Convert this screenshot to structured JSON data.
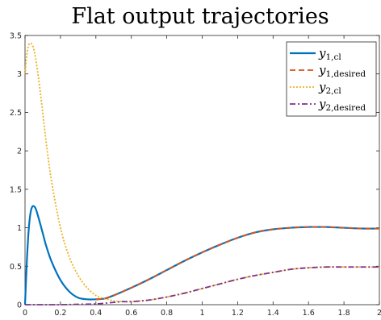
{
  "chart_data": {
    "type": "line",
    "title": "Flat output trajectories",
    "xlabel": "",
    "ylabel": "",
    "xlim": [
      0,
      2
    ],
    "ylim": [
      0,
      3.5
    ],
    "x_ticks": [
      0,
      0.2,
      0.4,
      0.6,
      0.8,
      1,
      1.2,
      1.4,
      1.6,
      1.8,
      2
    ],
    "x_tick_labels": [
      "0",
      "0.2",
      "0.4",
      "0.6",
      "0.8",
      "1",
      "1.2",
      "1.4",
      "1.6",
      "1.8",
      "2"
    ],
    "y_ticks": [
      0,
      0.5,
      1,
      1.5,
      2,
      2.5,
      3,
      3.5
    ],
    "y_tick_labels": [
      "0",
      "0.5",
      "1",
      "1.5",
      "2",
      "2.5",
      "3",
      "3.5"
    ],
    "grid": false,
    "legend_position": "top-right",
    "series": [
      {
        "name": "y",
        "name_subscript": "1,cl",
        "color": "#0072BD",
        "style": "solid",
        "x": [
          0,
          0.01,
          0.02,
          0.03,
          0.04,
          0.05,
          0.06,
          0.07,
          0.08,
          0.1,
          0.12,
          0.15,
          0.2,
          0.25,
          0.3,
          0.35,
          0.4,
          0.45,
          0.5,
          0.6,
          0.7,
          0.8,
          0.9,
          1.0,
          1.1,
          1.2,
          1.3,
          1.4,
          1.5,
          1.6,
          1.65,
          1.7,
          1.8,
          1.9,
          2.0
        ],
        "y": [
          0,
          0.55,
          0.95,
          1.18,
          1.27,
          1.28,
          1.25,
          1.18,
          1.1,
          0.93,
          0.76,
          0.56,
          0.32,
          0.17,
          0.09,
          0.07,
          0.07,
          0.08,
          0.12,
          0.22,
          0.33,
          0.45,
          0.57,
          0.68,
          0.78,
          0.87,
          0.94,
          0.98,
          1.0,
          1.01,
          1.01,
          1.01,
          1.0,
          0.99,
          0.99
        ]
      },
      {
        "name": "y",
        "name_subscript": "1,desired",
        "color": "#D95319",
        "style": "dashed",
        "x": [
          0.4,
          0.45,
          0.5,
          0.6,
          0.7,
          0.8,
          0.9,
          1.0,
          1.1,
          1.2,
          1.3,
          1.4,
          1.5,
          1.6,
          1.65,
          1.7,
          1.8,
          1.9,
          2.0
        ],
        "y": [
          0.07,
          0.08,
          0.12,
          0.22,
          0.33,
          0.45,
          0.57,
          0.68,
          0.78,
          0.87,
          0.94,
          0.98,
          1.0,
          1.01,
          1.01,
          1.01,
          1.0,
          0.99,
          0.99
        ]
      },
      {
        "name": "y",
        "name_subscript": "2,cl",
        "color": "#EDB120",
        "style": "dotted",
        "x": [
          0,
          0.01,
          0.02,
          0.03,
          0.04,
          0.05,
          0.06,
          0.07,
          0.08,
          0.1,
          0.12,
          0.15,
          0.2,
          0.25,
          0.3,
          0.35,
          0.4,
          0.43,
          0.45,
          0.5,
          0.55,
          0.6,
          0.7,
          0.8,
          0.9,
          1.0,
          1.1,
          1.2,
          1.3,
          1.4,
          1.5,
          1.6,
          1.7,
          1.8,
          1.9,
          2.0
        ],
        "y": [
          3.0,
          3.25,
          3.37,
          3.4,
          3.38,
          3.32,
          3.2,
          3.05,
          2.88,
          2.5,
          2.1,
          1.6,
          1.0,
          0.62,
          0.38,
          0.22,
          0.12,
          0.09,
          0.08,
          0.05,
          0.04,
          0.04,
          0.06,
          0.1,
          0.15,
          0.21,
          0.27,
          0.33,
          0.38,
          0.42,
          0.46,
          0.48,
          0.49,
          0.49,
          0.49,
          0.49
        ]
      },
      {
        "name": "y",
        "name_subscript": "2,desired",
        "color": "#7E2F8E",
        "style": "dash-dot",
        "x": [
          0,
          0.1,
          0.2,
          0.3,
          0.4,
          0.5,
          0.55,
          0.6,
          0.7,
          0.8,
          0.9,
          1.0,
          1.1,
          1.2,
          1.3,
          1.4,
          1.5,
          1.6,
          1.7,
          1.8,
          1.9,
          2.0
        ],
        "y": [
          0,
          0.0,
          0.0,
          0.005,
          0.01,
          0.03,
          0.04,
          0.04,
          0.06,
          0.1,
          0.15,
          0.21,
          0.27,
          0.33,
          0.38,
          0.42,
          0.46,
          0.48,
          0.49,
          0.49,
          0.49,
          0.49
        ]
      }
    ]
  }
}
